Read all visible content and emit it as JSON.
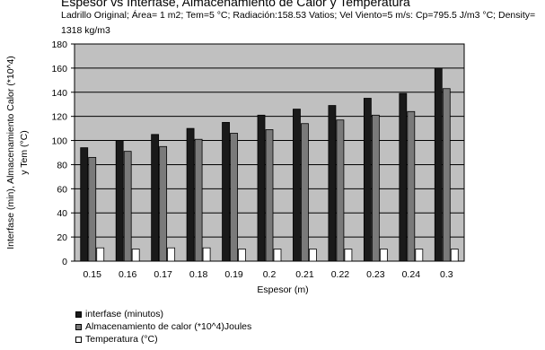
{
  "chart_data": {
    "type": "bar",
    "title": "Espesor vs Interfase, Almacenamiento de Calor y Temperatura",
    "subtitle": "Ladrillo Original; Área= 1 m2; Tem=5 °C; Radiación:158.53 Vatios; Vel Viento=5 m/s: Cp=795.5 J/m3 °C; Density= 1318 kg/m3",
    "xlabel": "Espesor (m)",
    "ylabel_line1": "Interfase (min), Almacenamiento Calor (*10^4)",
    "ylabel_line2": "y Tem (°C)",
    "ylim": [
      0,
      180
    ],
    "yticks": [
      "0",
      "20",
      "40",
      "60",
      "80",
      "100",
      "120",
      "140",
      "160",
      "180"
    ],
    "grid": true,
    "legend_position": "bottom-left",
    "categories": [
      "0.15",
      "0.16",
      "0.17",
      "0.18",
      "0.19",
      "0.2",
      "0.21",
      "0.22",
      "0.23",
      "0.24",
      "0.3"
    ],
    "series": [
      {
        "name": "interfase (minutos)",
        "color": "#1a1a1a",
        "values": [
          94,
          100,
          105,
          110,
          115,
          121,
          126,
          129,
          135,
          139,
          160
        ]
      },
      {
        "name": "Almacenamiento de calor (*10^4)Joules",
        "color": "#7a7a7a",
        "values": [
          86,
          91,
          95,
          101,
          106,
          109,
          114,
          117,
          121,
          124,
          143
        ]
      },
      {
        "name": "Temperatura (°C)",
        "color": "#ffffff",
        "values": [
          11,
          10,
          11,
          11,
          10,
          10,
          10,
          10,
          10,
          10,
          10
        ]
      }
    ],
    "plot_background": "#c0c0c0"
  }
}
